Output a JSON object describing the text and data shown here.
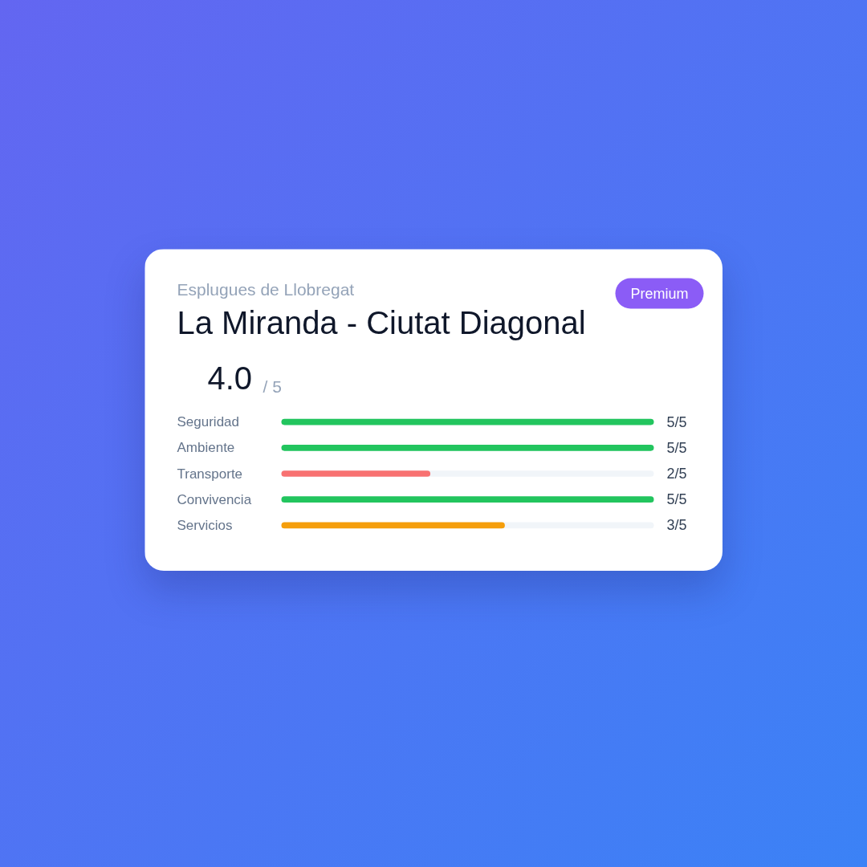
{
  "chart_data": {
    "type": "bar",
    "orientation": "horizontal",
    "subtitle": "Esplugues de Llobregat",
    "title": "La Miranda - Ciutat Diagonal",
    "annotations": [
      "Premium",
      "4.0",
      "/ 5"
    ],
    "categories": [
      "Seguridad",
      "Ambiente",
      "Transporte",
      "Convivencia",
      "Servicios"
    ],
    "values": [
      1,
      1,
      0.4,
      1,
      0.6
    ],
    "colors": [
      "#22c55e",
      "#22c55e",
      "#f87171",
      "#22c55e",
      "#f59e0b"
    ],
    "value_labels": [
      "5/5",
      "5/5",
      "2/5",
      "5/5",
      "3/5"
    ],
    "tick_labels": "y"
  }
}
